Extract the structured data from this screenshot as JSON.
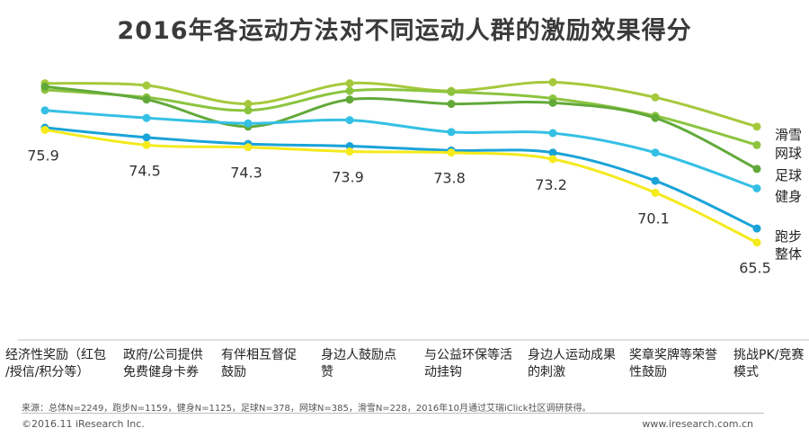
{
  "chart_data": {
    "type": "line",
    "title": "2016年各运动方法对不同运动人群的激励效果得分",
    "categories": [
      "经济性奖励（红包/授信/积分等）",
      "政府/公司提供免费健身卡券",
      "有伴相互督促鼓励",
      "身边人鼓励点赞",
      "与公益环保等活动挂钩",
      "身边人运动成果的刺激",
      "奖章奖牌等荣誉性鼓励",
      "挑战PK/竞赛模式"
    ],
    "category_lines": [
      [
        "经济性奖励（红包",
        "/授信/积分等）"
      ],
      [
        "政府/公司提供",
        "免费健身卡券"
      ],
      [
        "有伴相互督促",
        "鼓励"
      ],
      [
        "身边人鼓励点",
        "赞"
      ],
      [
        "与公益环保等活",
        "动挂钩"
      ],
      [
        "身边人运动成果",
        "的刺激"
      ],
      [
        "奖章奖牌等荣誉",
        "性鼓励"
      ],
      [
        "挑战PK/竞赛",
        "模式"
      ]
    ],
    "ylim": [
      60,
      81
    ],
    "series": [
      {
        "name": "滑雪",
        "color": "#a5c93b",
        "values": [
          80.2,
          80.0,
          78.3,
          80.2,
          79.5,
          80.3,
          78.9,
          76.2
        ]
      },
      {
        "name": "网球",
        "color": "#8cc43f",
        "values": [
          79.6,
          78.9,
          77.7,
          79.5,
          79.4,
          78.8,
          77.2,
          74.5
        ]
      },
      {
        "name": "足球",
        "color": "#62a93a",
        "values": [
          79.9,
          78.7,
          76.2,
          78.7,
          78.3,
          78.4,
          77.0,
          72.3
        ]
      },
      {
        "name": "健身",
        "color": "#34c0e4",
        "values": [
          77.7,
          77.0,
          76.5,
          76.8,
          75.7,
          75.6,
          73.8,
          70.5
        ]
      },
      {
        "name": "跑步",
        "color": "#1aa3d8",
        "values": [
          76.1,
          75.2,
          74.6,
          74.4,
          74.0,
          73.8,
          71.2,
          66.8
        ]
      },
      {
        "name": "整体",
        "color": "#f4ea1c",
        "values": [
          75.9,
          74.5,
          74.3,
          73.9,
          73.8,
          73.2,
          70.1,
          65.5
        ]
      }
    ],
    "data_labels": [
      "75.9",
      "74.5",
      "74.3",
      "73.9",
      "73.8",
      "73.2",
      "70.1",
      "65.5"
    ]
  },
  "footer": {
    "source": "来源：总体N=2249，跑步N=1159，健身N=1125，足球N=378，网球N=385，滑雪N=228，2016年10月通过艾瑞iClick社区调研获得。",
    "copyright": "©2016.11 iResearch Inc.",
    "website": "www.iresearch.com.cn"
  }
}
